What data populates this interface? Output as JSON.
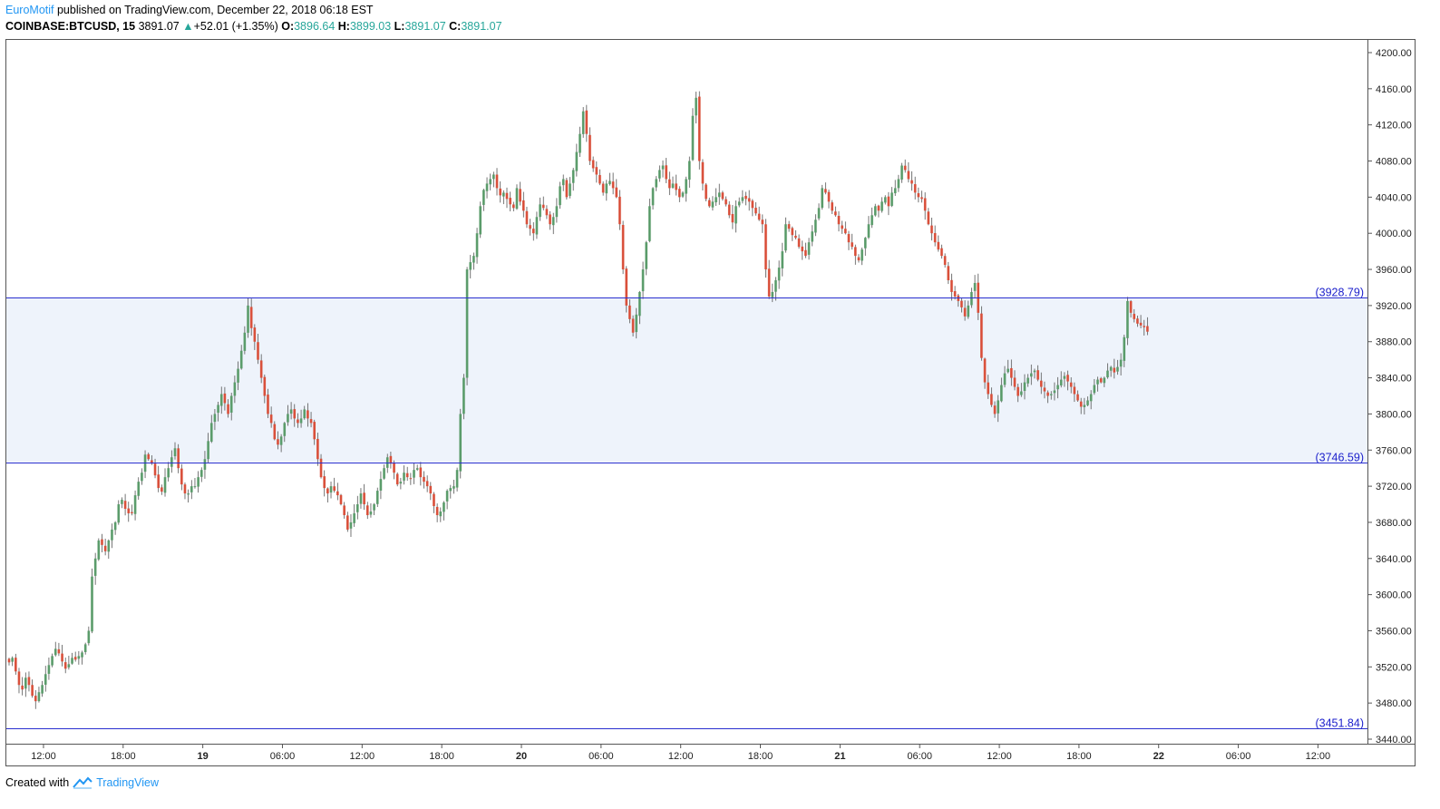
{
  "header": {
    "author": "EuroMotif",
    "published_text": " published on TradingView.com, December 22, 2018 06:18 EST",
    "symbol": "COINBASE:BTCUSD, 15",
    "last": "3891.07",
    "change": "+52.01 (+1.35%)",
    "open_label": "O:",
    "open": "3896.64",
    "high_label": "H:",
    "high": "3899.03",
    "low_label": "L:",
    "low": "3891.07",
    "close_label": "C:",
    "close": "3891.07"
  },
  "footer": {
    "created_with": "Created with",
    "brand": "TradingView"
  },
  "colors": {
    "up": "#5b9c6b",
    "down": "#d9503b",
    "level_line": "#2a2fd0",
    "zone_fill": "#eef3fb",
    "axis": "#555555"
  },
  "chart_data": {
    "type": "candlestick",
    "ylim": [
      3430,
      4215
    ],
    "y_ticks": [
      3440,
      3480,
      3520,
      3560,
      3600,
      3640,
      3680,
      3720,
      3760,
      3800,
      3840,
      3880,
      3920,
      3960,
      4000,
      4040,
      4080,
      4120,
      4160,
      4200
    ],
    "y_tick_labels": [
      "3440.00",
      "3480.00",
      "3520.00",
      "3560.00",
      "3600.00",
      "3640.00",
      "3680.00",
      "3720.00",
      "3760.00",
      "3800.00",
      "3840.00",
      "3880.00",
      "3920.00",
      "3960.00",
      "4000.00",
      "4040.00",
      "4080.00",
      "4120.00",
      "4160.00",
      "4200.00"
    ],
    "x_ticks": [
      {
        "label": "12:00",
        "bar": 6,
        "bold": false
      },
      {
        "label": "18:00",
        "bar": 30,
        "bold": false
      },
      {
        "label": "19",
        "bar": 54,
        "bold": true
      },
      {
        "label": "06:00",
        "bar": 78,
        "bold": false
      },
      {
        "label": "12:00",
        "bar": 102,
        "bold": false
      },
      {
        "label": "18:00",
        "bar": 126,
        "bold": false
      },
      {
        "label": "20",
        "bar": 150,
        "bold": true
      },
      {
        "label": "06:00",
        "bar": 174,
        "bold": false
      },
      {
        "label": "12:00",
        "bar": 198,
        "bold": false
      },
      {
        "label": "18:00",
        "bar": 222,
        "bold": false
      },
      {
        "label": "21",
        "bar": 246,
        "bold": true
      },
      {
        "label": "06:00",
        "bar": 270,
        "bold": false
      },
      {
        "label": "12:00",
        "bar": 294,
        "bold": false
      },
      {
        "label": "18:00",
        "bar": 318,
        "bold": false
      },
      {
        "label": "22",
        "bar": 342,
        "bold": true
      },
      {
        "label": "06:00",
        "bar": 366,
        "bold": false
      },
      {
        "label": "12:00",
        "bar": 390,
        "bold": false
      }
    ],
    "levels": [
      {
        "value": 3928.79,
        "label": "(3928.79)"
      },
      {
        "value": 3746.59,
        "label": "(3746.59)"
      },
      {
        "value": 3451.84,
        "label": "(3451.84)"
      }
    ],
    "zone": [
      3746.59,
      3928.79
    ],
    "close": [
      3525,
      3530,
      3515,
      3500,
      3495,
      3508,
      3500,
      3488,
      3482,
      3492,
      3500,
      3512,
      3522,
      3532,
      3540,
      3535,
      3526,
      3518,
      3523,
      3530,
      3528,
      3532,
      3536,
      3545,
      3560,
      3620,
      3640,
      3660,
      3655,
      3648,
      3660,
      3672,
      3680,
      3700,
      3705,
      3695,
      3690,
      3690,
      3710,
      3725,
      3735,
      3755,
      3750,
      3745,
      3732,
      3718,
      3714,
      3730,
      3740,
      3752,
      3762,
      3740,
      3722,
      3712,
      3712,
      3720,
      3720,
      3730,
      3738,
      3750,
      3770,
      3790,
      3800,
      3810,
      3822,
      3812,
      3800,
      3820,
      3835,
      3850,
      3870,
      3890,
      3920,
      3895,
      3880,
      3860,
      3840,
      3820,
      3800,
      3790,
      3772,
      3766,
      3775,
      3790,
      3800,
      3805,
      3795,
      3790,
      3795,
      3805,
      3795,
      3790,
      3772,
      3750,
      3730,
      3718,
      3712,
      3720,
      3715,
      3710,
      3700,
      3688,
      3672,
      3680,
      3690,
      3700,
      3712,
      3700,
      3688,
      3692,
      3700,
      3715,
      3728,
      3740,
      3752,
      3745,
      3735,
      3722,
      3725,
      3735,
      3730,
      3728,
      3738,
      3740,
      3730,
      3725,
      3720,
      3712,
      3698,
      3688,
      3692,
      3702,
      3715,
      3718,
      3720,
      3738,
      3800,
      3840,
      3960,
      3968,
      3975,
      4000,
      4030,
      4048,
      4055,
      4060,
      4065,
      4050,
      4042,
      4045,
      4038,
      4032,
      4028,
      4050,
      4035,
      4025,
      4010,
      4005,
      4000,
      4018,
      4032,
      4028,
      4020,
      4010,
      4018,
      4030,
      4052,
      4060,
      4040,
      4055,
      4070,
      4090,
      4110,
      4135,
      4110,
      4080,
      4072,
      4065,
      4055,
      4045,
      4055,
      4058,
      4050,
      4040,
      4010,
      3960,
      3920,
      3905,
      3890,
      3910,
      3935,
      3960,
      3990,
      4030,
      4050,
      4060,
      4070,
      4075,
      4060,
      4050,
      4055,
      4048,
      4040,
      4045,
      4060,
      4080,
      4130,
      4150,
      4080,
      4055,
      4038,
      4030,
      4035,
      4040,
      4045,
      4038,
      4032,
      4020,
      4012,
      4030,
      4035,
      4040,
      4038,
      4035,
      4028,
      4022,
      4015,
      4010,
      3960,
      3930,
      3935,
      3948,
      3962,
      3980,
      4010,
      4005,
      3998,
      3995,
      3985,
      3980,
      3975,
      3990,
      4002,
      4015,
      4028,
      4050,
      4045,
      4035,
      4025,
      4020,
      4010,
      4005,
      4000,
      3990,
      3985,
      3975,
      3970,
      3982,
      3995,
      4010,
      4020,
      4030,
      4025,
      4035,
      4040,
      4030,
      4045,
      4050,
      4060,
      4075,
      4070,
      4060,
      4055,
      4045,
      4040,
      4038,
      4025,
      4010,
      4000,
      3990,
      3982,
      3975,
      3965,
      3948,
      3935,
      3930,
      3925,
      3918,
      3908,
      3920,
      3935,
      3945,
      3912,
      3862,
      3835,
      3822,
      3810,
      3800,
      3815,
      3832,
      3845,
      3850,
      3840,
      3830,
      3820,
      3825,
      3835,
      3840,
      3845,
      3848,
      3838,
      3830,
      3825,
      3820,
      3822,
      3826,
      3832,
      3838,
      3842,
      3836,
      3830,
      3822,
      3815,
      3808,
      3810,
      3815,
      3822,
      3832,
      3838,
      3835,
      3840,
      3848,
      3852,
      3846,
      3852,
      3860,
      3885,
      3925,
      3912,
      3905,
      3900,
      3898,
      3896,
      3891.07
    ],
    "last_price": 3891.07
  }
}
